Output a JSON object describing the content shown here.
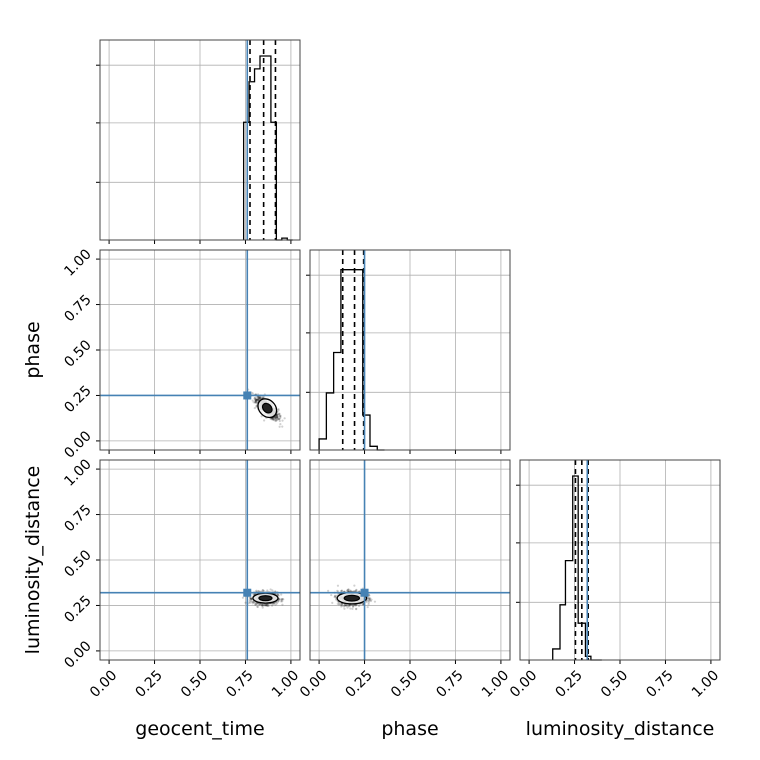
{
  "chart_data": {
    "type": "corner",
    "parameters": [
      "geocent_time",
      "phase",
      "luminosity_distance"
    ],
    "axis_labels": {
      "geocent_time": "geocent_time",
      "phase": "phase",
      "luminosity_distance": "luminosity_distance"
    },
    "range": [
      -0.05,
      1.05
    ],
    "ticks": [
      0.0,
      0.25,
      0.5,
      0.75,
      1.0
    ],
    "tick_labels": [
      "0.00",
      "0.25",
      "0.50",
      "0.75",
      "1.00"
    ],
    "grid": true,
    "truth": {
      "geocent_time": 0.76,
      "phase": 0.25,
      "luminosity_distance": 0.32
    },
    "truth_color": "#4682b4",
    "contour_color": "#000000",
    "histograms": {
      "geocent_time": {
        "bins": [
          0.74,
          0.77,
          0.8,
          0.83,
          0.86,
          0.89,
          0.92,
          0.95,
          0.98,
          1.01
        ],
        "counts": [
          0.64,
          0.86,
          0.93,
          1.0,
          1.0,
          0.64,
          0.0,
          0.01,
          0.0
        ],
        "quantiles": [
          0.775,
          0.85,
          0.915
        ]
      },
      "phase": {
        "bins": [
          0.0,
          0.04,
          0.08,
          0.12,
          0.16,
          0.2,
          0.24,
          0.28,
          0.32,
          0.36
        ],
        "counts": [
          0.06,
          0.31,
          0.53,
          0.98,
          0.98,
          0.98,
          0.19,
          0.02,
          0.0
        ],
        "quantiles": [
          0.13,
          0.195,
          0.245
        ]
      },
      "luminosity_distance": {
        "bins": [
          0.13,
          0.17,
          0.2,
          0.24,
          0.27,
          0.31,
          0.34,
          0.37,
          0.4
        ],
        "counts": [
          0.06,
          0.3,
          0.54,
          1.0,
          0.2,
          0.02,
          0.0,
          0.0
        ],
        "quantiles": [
          0.255,
          0.29,
          0.325
        ]
      }
    },
    "scatter_2d": [
      {
        "x": "geocent_time",
        "y": "phase",
        "center": [
          0.87,
          0.18
        ],
        "spread": [
          0.055,
          0.055
        ],
        "corr": -0.75
      },
      {
        "x": "geocent_time",
        "y": "luminosity_distance",
        "center": [
          0.86,
          0.29
        ],
        "spread": [
          0.06,
          0.03
        ],
        "corr": 0.0
      },
      {
        "x": "phase",
        "y": "luminosity_distance",
        "center": [
          0.18,
          0.29
        ],
        "spread": [
          0.07,
          0.035
        ],
        "corr": 0.0
      }
    ]
  }
}
